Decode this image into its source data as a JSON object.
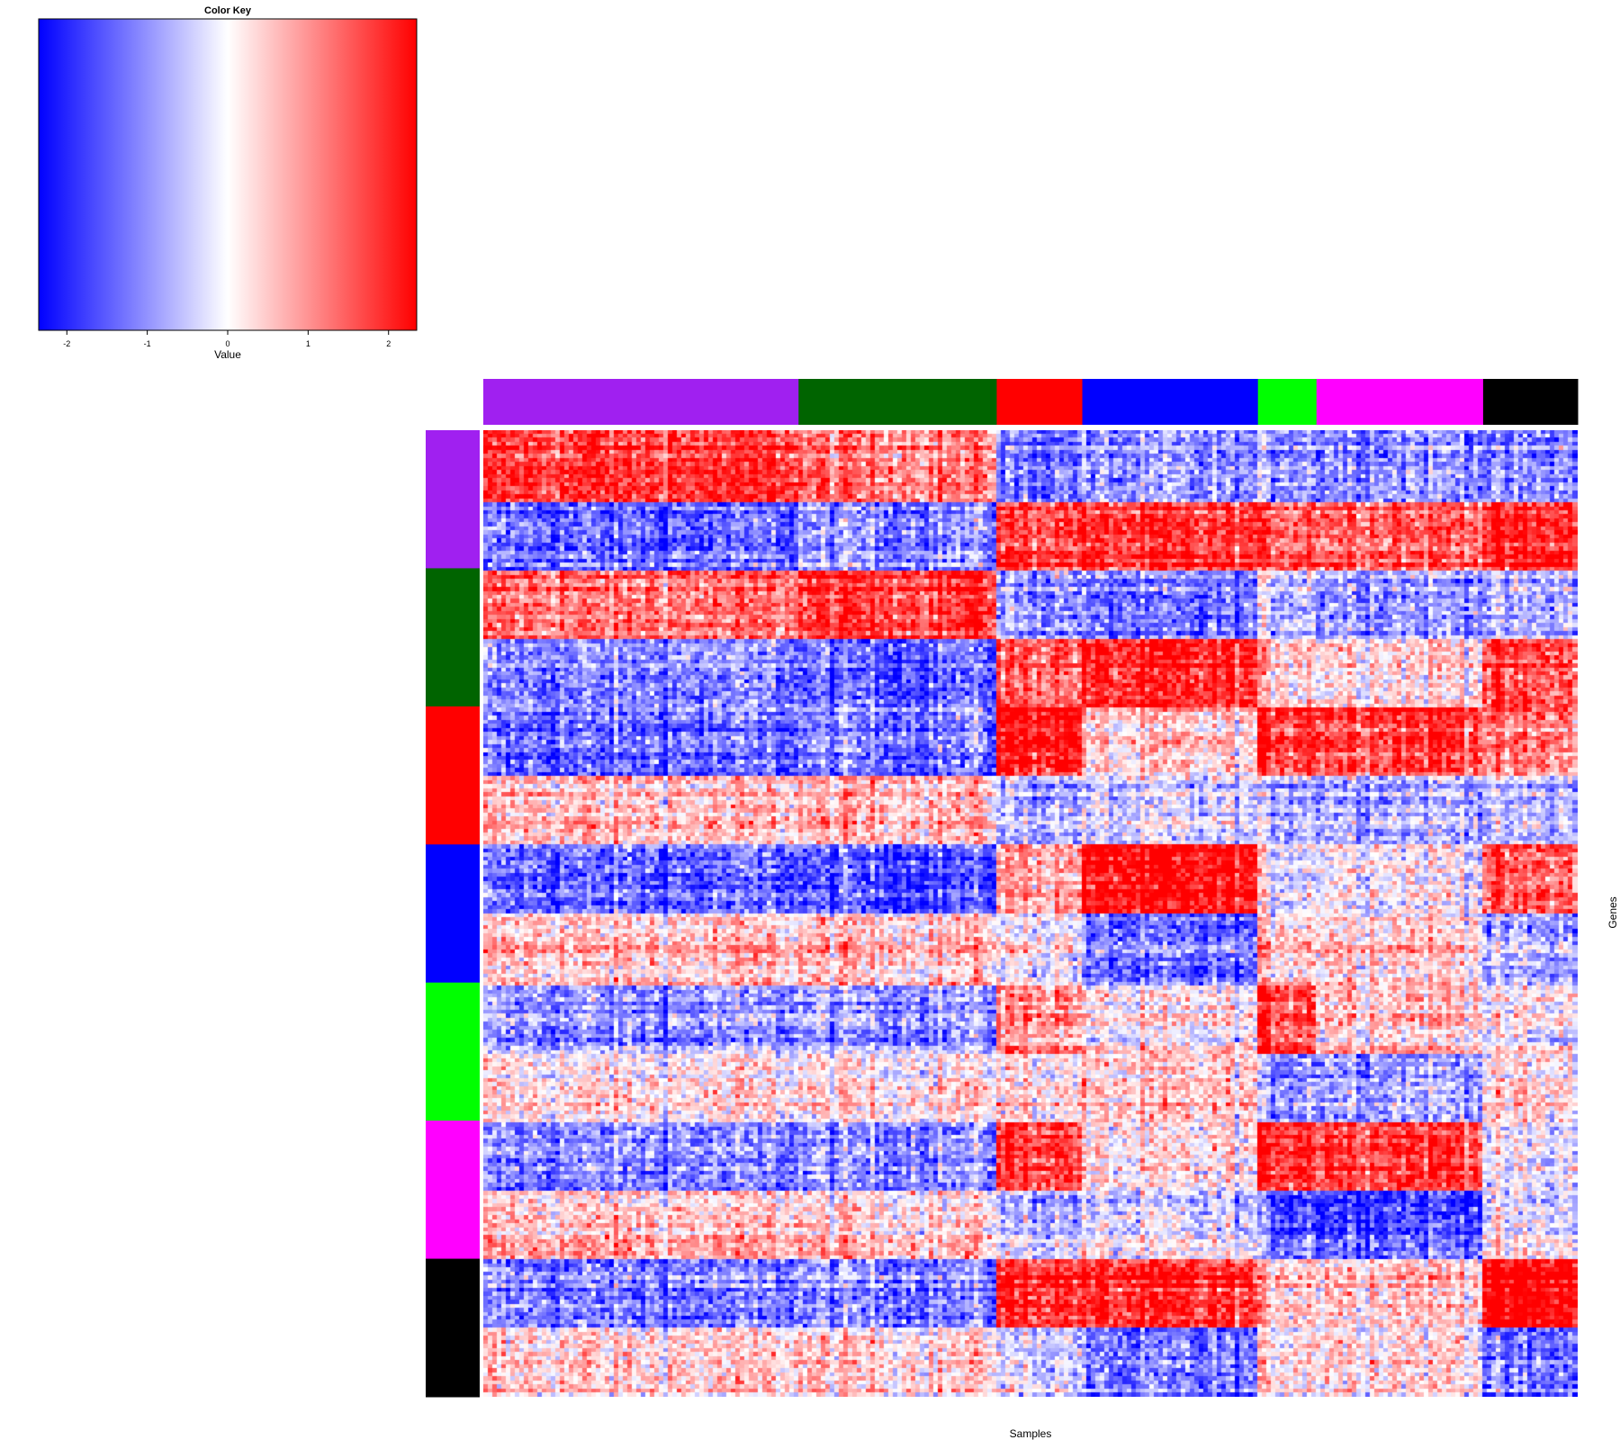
{
  "chart_data": {
    "type": "heatmap",
    "title": "",
    "xlabel": "Samples",
    "ylabel": "Genes",
    "color_key": {
      "title": "Color Key",
      "xlabel": "Value",
      "range": [
        -2.35,
        2.35
      ],
      "ticks": [
        -2,
        -1,
        0,
        1,
        2
      ],
      "tick_labels": [
        "-2",
        "-1",
        "0",
        "1",
        "2"
      ],
      "colors": [
        "#0000ff",
        "#ffffff",
        "#ff0000"
      ]
    },
    "groups": [
      {
        "name": "purple",
        "color": "#a020f0",
        "samples": 70,
        "genes": 100
      },
      {
        "name": "darkgreen",
        "color": "#006400",
        "samples": 44,
        "genes": 100
      },
      {
        "name": "red",
        "color": "#ff0000",
        "samples": 19,
        "genes": 100
      },
      {
        "name": "blue",
        "color": "#0000ff",
        "samples": 39,
        "genes": 100
      },
      {
        "name": "green",
        "color": "#00ff00",
        "samples": 13,
        "genes": 100
      },
      {
        "name": "magenta",
        "color": "#ff00ff",
        "samples": 37,
        "genes": 100
      },
      {
        "name": "black",
        "color": "#000000",
        "samples": 21,
        "genes": 100
      }
    ],
    "block_means": [
      [
        1.8,
        1.2,
        -1.3,
        -1.1,
        -0.9,
        -1.0,
        -1.2
      ],
      [
        -1.5,
        -1.1,
        1.7,
        1.7,
        1.5,
        1.5,
        1.9
      ],
      [
        1.3,
        1.9,
        -0.9,
        -1.3,
        -0.4,
        -0.8,
        -0.7
      ],
      [
        -1.2,
        -1.5,
        1.4,
        1.9,
        0.4,
        0.3,
        1.5
      ],
      [
        -1.4,
        -1.2,
        2.3,
        0.3,
        2.0,
        1.9,
        1.1
      ],
      [
        0.6,
        0.7,
        -0.6,
        -0.4,
        -0.5,
        -0.6,
        -0.6
      ],
      [
        -1.3,
        -1.5,
        1.0,
        2.4,
        0.0,
        0.2,
        1.6
      ],
      [
        0.5,
        0.6,
        0.0,
        -1.4,
        0.6,
        0.5,
        -0.8
      ],
      [
        -0.9,
        -0.8,
        1.1,
        0.1,
        1.9,
        0.7,
        0.0
      ],
      [
        0.2,
        0.2,
        0.3,
        0.4,
        -0.9,
        -0.7,
        0.2
      ],
      [
        -1.1,
        -1.0,
        1.9,
        0.1,
        2.1,
        1.9,
        -0.2
      ],
      [
        0.6,
        0.5,
        -0.5,
        -0.3,
        -1.3,
        -1.5,
        -0.1
      ],
      [
        -1.3,
        -1.2,
        2.0,
        1.8,
        0.5,
        0.5,
        2.4
      ],
      [
        0.3,
        0.3,
        -0.4,
        -1.4,
        0.2,
        0.3,
        -1.4
      ]
    ]
  }
}
